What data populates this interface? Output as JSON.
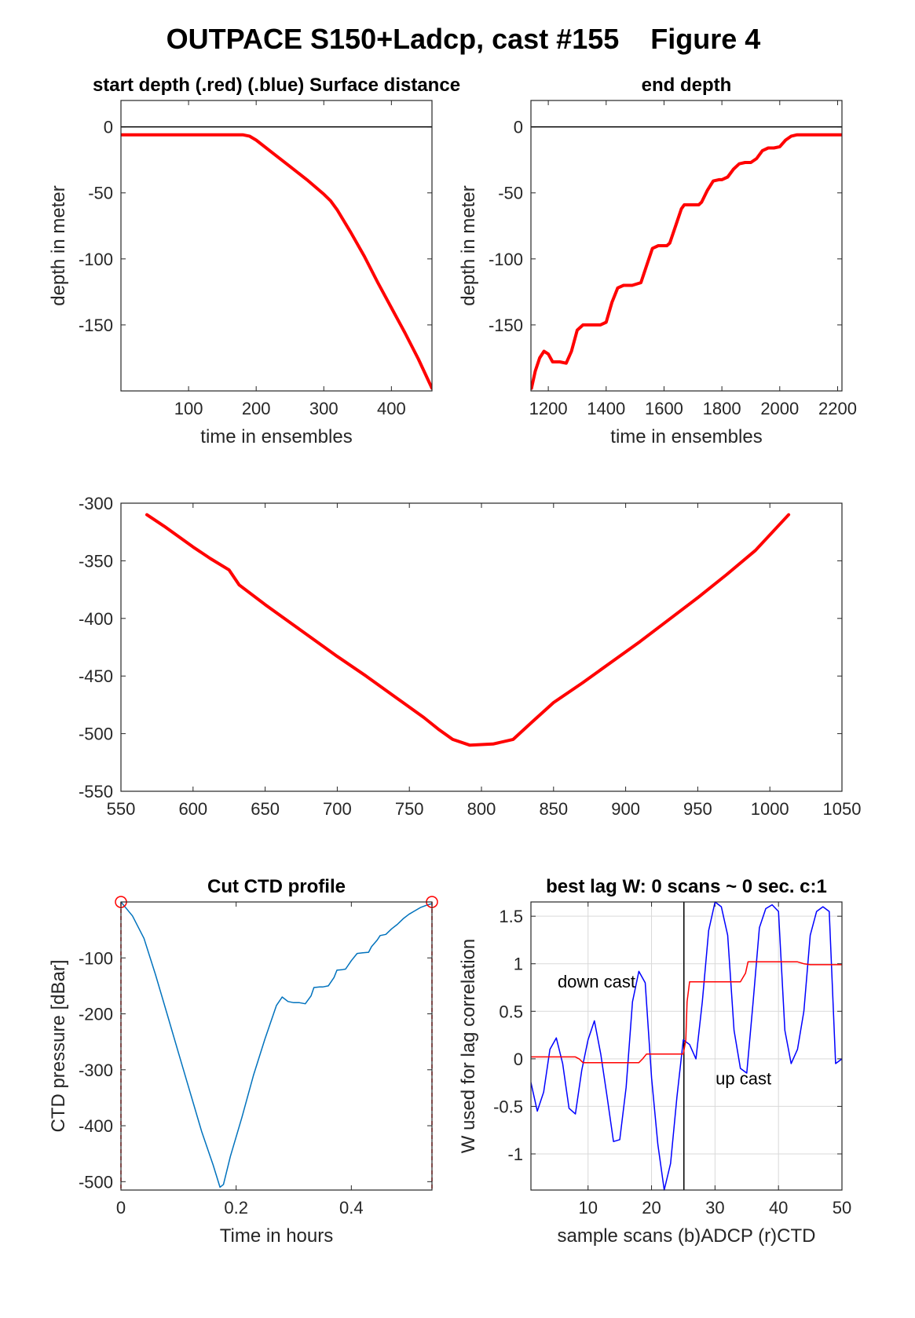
{
  "figure": {
    "title": "OUTPACE S150+Ladcp, cast #155    Figure 4"
  },
  "colors": {
    "red": "#ff0000",
    "blue": "#0000ff",
    "ctd": "#0072bd",
    "axis": "#262626",
    "grid": "#d9d9d9"
  },
  "chart_data": [
    {
      "id": "start",
      "type": "line",
      "title": "start depth (.red) (.blue) Surface distance",
      "xlabel": "time in ensembles",
      "ylabel": "depth in meter",
      "xlim": [
        0,
        460
      ],
      "ylim": [
        -200,
        20
      ],
      "xticks": [
        100,
        200,
        300,
        400
      ],
      "yticks": [
        0,
        -50,
        -100,
        -150
      ],
      "hline": 0,
      "series": [
        {
          "color": "#ff0000",
          "width": 4,
          "x": [
            0,
            50,
            100,
            150,
            180,
            190,
            200,
            225,
            250,
            275,
            300,
            310,
            320,
            340,
            360,
            380,
            400,
            420,
            440,
            460
          ],
          "y": [
            -6,
            -6,
            -6,
            -6,
            -6,
            -7,
            -10,
            -20,
            -30,
            -40,
            -51,
            -56,
            -63,
            -80,
            -98,
            -118,
            -137,
            -156,
            -176,
            -198
          ]
        }
      ]
    },
    {
      "id": "end",
      "type": "line",
      "title": "end depth",
      "xlabel": "time in ensembles",
      "ylabel": "depth in meter",
      "xlim": [
        1140,
        2215
      ],
      "ylim": [
        -200,
        20
      ],
      "xticks": [
        1200,
        1400,
        1600,
        1800,
        2000,
        2200
      ],
      "yticks": [
        0,
        -50,
        -100,
        -150
      ],
      "hline": 0,
      "series": [
        {
          "color": "#ff0000",
          "width": 4,
          "x": [
            1142,
            1155,
            1170,
            1185,
            1200,
            1215,
            1240,
            1262,
            1280,
            1300,
            1320,
            1350,
            1380,
            1400,
            1420,
            1440,
            1460,
            1490,
            1520,
            1540,
            1560,
            1580,
            1610,
            1620,
            1640,
            1660,
            1670,
            1690,
            1720,
            1730,
            1750,
            1770,
            1790,
            1800,
            1820,
            1840,
            1860,
            1880,
            1900,
            1920,
            1940,
            1960,
            1980,
            2000,
            2020,
            2040,
            2060,
            2080,
            2100,
            2150,
            2215
          ],
          "y": [
            -198,
            -185,
            -175,
            -170,
            -172,
            -178,
            -178,
            -179,
            -170,
            -154,
            -150,
            -150,
            -150,
            -148,
            -133,
            -122,
            -120,
            -120,
            -118,
            -105,
            -92,
            -90,
            -90,
            -88,
            -75,
            -62,
            -59,
            -59,
            -59,
            -57,
            -48,
            -41,
            -40,
            -40,
            -38,
            -32,
            -28,
            -27,
            -27,
            -24,
            -18,
            -16,
            -16,
            -15,
            -10,
            -7,
            -6,
            -6,
            -6,
            -6,
            -6
          ]
        }
      ]
    },
    {
      "id": "middle",
      "type": "line",
      "title": "",
      "xlabel": "",
      "ylabel": "",
      "xlim": [
        550,
        1050
      ],
      "ylim": [
        -550,
        -300
      ],
      "xticks": [
        550,
        600,
        650,
        700,
        750,
        800,
        850,
        900,
        950,
        1000,
        1050
      ],
      "yticks": [
        -300,
        -350,
        -400,
        -450,
        -500,
        -550
      ],
      "series": [
        {
          "color": "#ff0000",
          "width": 4,
          "x": [
            568,
            580,
            600,
            612,
            625,
            632,
            650,
            670,
            690,
            700,
            720,
            740,
            760,
            770,
            780,
            792,
            808,
            822,
            835,
            850,
            870,
            890,
            910,
            930,
            950,
            970,
            990,
            1013
          ],
          "y": [
            -310,
            -320,
            -338,
            -348,
            -358,
            -371,
            -388,
            -406,
            -424,
            -433,
            -450,
            -468,
            -486,
            -496,
            -505,
            -510,
            -509,
            -505,
            -490,
            -473,
            -456,
            -438,
            -420,
            -401,
            -382,
            -362,
            -341,
            -310
          ]
        }
      ]
    },
    {
      "id": "ctd",
      "type": "line",
      "title": "Cut CTD profile",
      "xlabel": "Time in hours",
      "ylabel": "CTD pressure [dBar]",
      "xlim": [
        0,
        0.54
      ],
      "ylim": [
        -515,
        0
      ],
      "xticks": [
        0,
        0.2,
        0.4
      ],
      "yticks": [
        -100,
        -200,
        -300,
        -400,
        -500
      ],
      "xticklabels": [
        "0",
        "0.2",
        "0.4"
      ],
      "cutlines": [
        0,
        0.54
      ],
      "markers": [
        {
          "x": 0,
          "y": 0
        },
        {
          "x": 0.54,
          "y": 0
        }
      ],
      "series": [
        {
          "color": "#0072bd",
          "width": 1.5,
          "x": [
            0,
            0.02,
            0.04,
            0.06,
            0.08,
            0.1,
            0.12,
            0.14,
            0.16,
            0.172,
            0.178,
            0.19,
            0.21,
            0.23,
            0.25,
            0.27,
            0.28,
            0.29,
            0.3,
            0.31,
            0.32,
            0.33,
            0.335,
            0.345,
            0.35,
            0.36,
            0.37,
            0.375,
            0.385,
            0.39,
            0.4,
            0.41,
            0.42,
            0.43,
            0.435,
            0.445,
            0.45,
            0.46,
            0.47,
            0.48,
            0.49,
            0.5,
            0.51,
            0.52,
            0.53,
            0.54
          ],
          "y": [
            0,
            -25,
            -65,
            -130,
            -200,
            -270,
            -340,
            -410,
            -470,
            -510,
            -505,
            -455,
            -385,
            -310,
            -245,
            -185,
            -170,
            -178,
            -180,
            -180,
            -182,
            -168,
            -153,
            -152,
            -152,
            -150,
            -135,
            -122,
            -121,
            -120,
            -105,
            -92,
            -91,
            -90,
            -80,
            -68,
            -60,
            -58,
            -48,
            -40,
            -30,
            -22,
            -16,
            -10,
            -6,
            -3
          ]
        }
      ]
    },
    {
      "id": "lag",
      "type": "line",
      "title": "best lag W: 0 scans ~ 0 sec.  c:1",
      "xlabel": "sample scans (b)ADCP (r)CTD",
      "ylabel": "W used for lag correlation",
      "xlim": [
        1,
        50
      ],
      "ylim": [
        -1.38,
        1.65
      ],
      "xticks": [
        10,
        20,
        30,
        40,
        50
      ],
      "yticks": [
        1.5,
        1,
        0.5,
        0,
        -0.5,
        -1
      ],
      "xgrid": [
        10,
        20,
        30,
        40
      ],
      "ygrid": [
        1.5,
        1,
        0.5,
        0,
        -0.5,
        -1
      ],
      "vline": 25.1,
      "annotations": [
        {
          "text": "down cast",
          "x": 5.2,
          "y": 0.75
        },
        {
          "text": "up cast",
          "x": 30.1,
          "y": -0.27
        }
      ],
      "series": [
        {
          "color": "#0000ff",
          "width": 1.5,
          "x": [
            1,
            2,
            3,
            4,
            5,
            6,
            7,
            8,
            9,
            10,
            11,
            12,
            13,
            14,
            15,
            16,
            17,
            18,
            19,
            20,
            21,
            22,
            23,
            24,
            25,
            26,
            27,
            28,
            29,
            30,
            31,
            32,
            33,
            34,
            35,
            36,
            37,
            38,
            39,
            40,
            41,
            42,
            43,
            44,
            45,
            46,
            47,
            48,
            49,
            50
          ],
          "y": [
            -0.25,
            -0.55,
            -0.35,
            0.1,
            0.22,
            -0.05,
            -0.52,
            -0.58,
            -0.12,
            0.2,
            0.4,
            0.05,
            -0.4,
            -0.87,
            -0.85,
            -0.3,
            0.6,
            0.92,
            0.8,
            -0.2,
            -0.9,
            -1.38,
            -1.1,
            -0.4,
            0.2,
            0.15,
            0.0,
            0.6,
            1.35,
            1.65,
            1.6,
            1.3,
            0.3,
            -0.1,
            -0.15,
            0.6,
            1.38,
            1.58,
            1.62,
            1.55,
            0.3,
            -0.05,
            0.1,
            0.5,
            1.3,
            1.55,
            1.6,
            1.55,
            -0.05,
            0.0
          ]
        },
        {
          "color": "#ff0000",
          "width": 1.5,
          "x": [
            1,
            3,
            5,
            7,
            8,
            8.6,
            9.2,
            10,
            12,
            14,
            16,
            17,
            18,
            18.6,
            19.2,
            20,
            22,
            24,
            25,
            25.4,
            25.6,
            26,
            28,
            30,
            32,
            34,
            34.8,
            35.2,
            36,
            38,
            40,
            42,
            43,
            44,
            45,
            47,
            50
          ],
          "y": [
            0.02,
            0.02,
            0.02,
            0.02,
            0.02,
            0.0,
            -0.04,
            -0.04,
            -0.04,
            -0.04,
            -0.04,
            -0.04,
            -0.04,
            0.0,
            0.05,
            0.05,
            0.05,
            0.05,
            0.05,
            0.2,
            0.6,
            0.81,
            0.81,
            0.81,
            0.81,
            0.81,
            0.9,
            1.02,
            1.02,
            1.02,
            1.02,
            1.02,
            1.02,
            1.0,
            0.99,
            0.99,
            0.99
          ]
        }
      ]
    }
  ]
}
